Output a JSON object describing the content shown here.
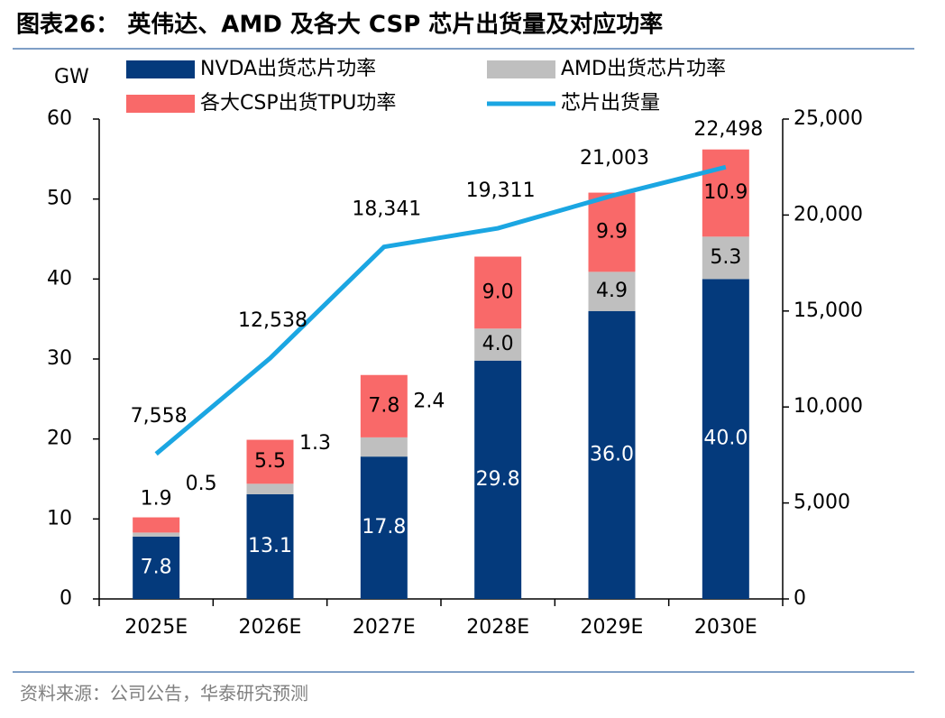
{
  "chart_data": {
    "type": "bar",
    "title": "图表26：  英伟达、AMD 及各大 CSP 芯片出货量及对应功率",
    "source": "资料来源：公司公告，华泰研究预测",
    "y_label": "GW",
    "categories": [
      "2025E",
      "2026E",
      "2027E",
      "2028E",
      "2029E",
      "2030E"
    ],
    "series": [
      {
        "name": "NVDA出货芯片功率",
        "color": "#043a7c",
        "values": [
          7.8,
          13.1,
          17.8,
          29.8,
          36.0,
          40.0
        ],
        "value_labels": [
          "7.8",
          "13.1",
          "17.8",
          "29.8",
          "36.0",
          "40.0"
        ]
      },
      {
        "name": "AMD出货芯片功率",
        "color": "#bfbfbf",
        "values": [
          0.5,
          1.3,
          2.4,
          4.0,
          4.9,
          5.3
        ],
        "value_labels": [
          "0.5",
          "1.3",
          "2.4",
          "4.0",
          "4.9",
          "5.3"
        ]
      },
      {
        "name": "各大CSP出货TPU功率",
        "color": "#f96969",
        "values": [
          1.9,
          5.5,
          7.8,
          9.0,
          9.9,
          10.9
        ],
        "value_labels": [
          "1.9",
          "5.5",
          "7.8",
          "9.0",
          "9.9",
          "10.9"
        ]
      },
      {
        "name": "芯片出货量",
        "color": "#1ba6e2",
        "type": "line",
        "axis": "y2",
        "values": [
          7558,
          12538,
          18341,
          19311,
          21003,
          22498
        ],
        "value_labels": [
          "7,558",
          "12,538",
          "18,341",
          "19,311",
          "21,003",
          "22,498"
        ]
      }
    ],
    "ylim": [
      0,
      60
    ],
    "yticks": [
      0,
      10,
      20,
      30,
      40,
      50,
      60
    ],
    "y2lim": [
      0,
      25000
    ],
    "y2ticks": [
      0,
      {
        "value": 5000,
        "label": "5,000"
      },
      {
        "value": 10000,
        "label": "10,000"
      },
      {
        "value": 15000,
        "label": "15,000"
      },
      {
        "value": 20000,
        "label": "20,000"
      },
      {
        "value": 25000,
        "label": "25,000"
      }
    ]
  }
}
